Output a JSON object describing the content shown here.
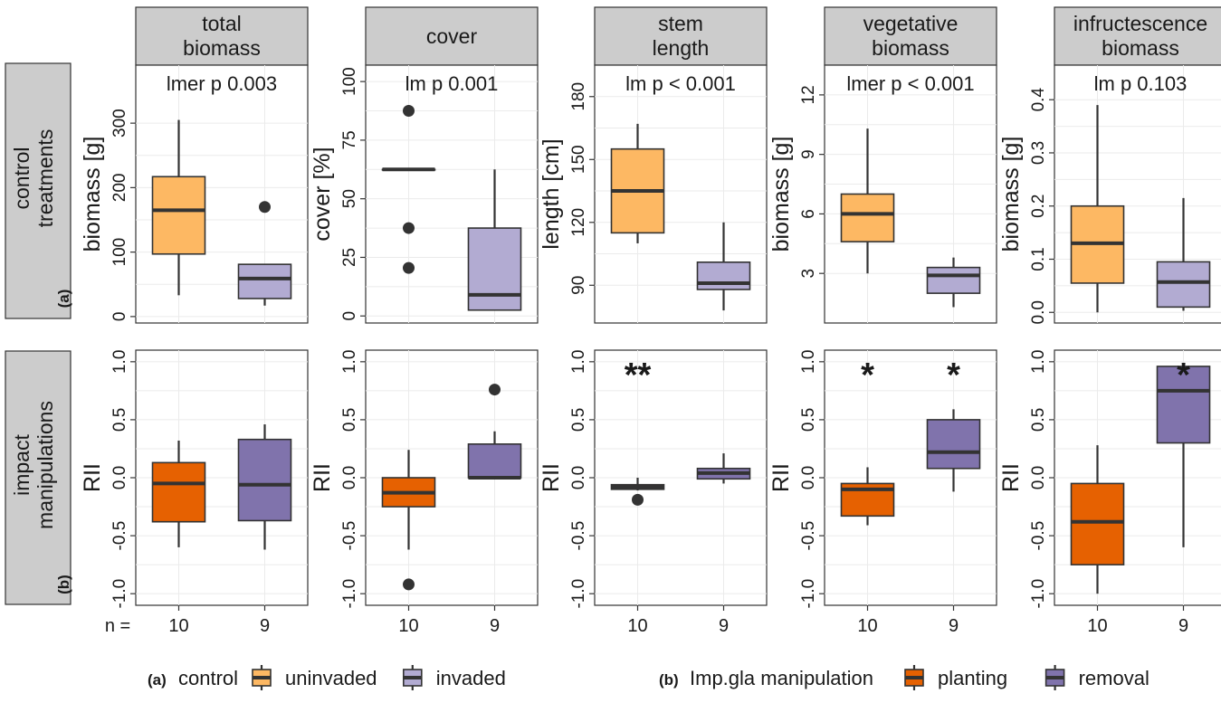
{
  "colors": {
    "uninvaded": "#fdb863",
    "invaded": "#b2abd2",
    "planting": "#e66101",
    "removal": "#8073ac",
    "strip_bg": "#cccccc",
    "ink": "#333333"
  },
  "columns": [
    "total\nbiomass",
    "cover",
    "stem\nlength",
    "vegetative\nbiomass",
    "infructescence\nbiomass"
  ],
  "row_strips": [
    {
      "tag": "(a)",
      "text": "control\ntreatments"
    },
    {
      "tag": "(b)",
      "text": "impact\nmanipulations"
    }
  ],
  "n_label": "n =",
  "n_values": [
    "10",
    "9"
  ],
  "legend": {
    "a": {
      "tag": "(a)",
      "title": "control",
      "items": [
        {
          "label": "uninvaded",
          "color": "#fdb863"
        },
        {
          "label": "invaded",
          "color": "#b2abd2"
        }
      ]
    },
    "b": {
      "tag": "(b)",
      "title": "Imp.gla manipulation",
      "items": [
        {
          "label": "planting",
          "color": "#e66101"
        },
        {
          "label": "removal",
          "color": "#8073ac"
        }
      ]
    }
  },
  "chart_data": [
    {
      "type": "box",
      "row": 0,
      "col": 0,
      "ylabel": "biomass [g]",
      "stat_label": "lmer p 0.003",
      "ylim": [
        -10,
        390
      ],
      "yticks": [
        0,
        100,
        200,
        300
      ],
      "boxes": [
        {
          "group": "uninvaded",
          "color": "#fdb863",
          "min": 33,
          "q1": 97,
          "median": 165,
          "q3": 217,
          "max": 305,
          "outliers": []
        },
        {
          "group": "invaded",
          "color": "#b2abd2",
          "min": 17,
          "q1": 28,
          "median": 59,
          "q3": 81,
          "max": 81,
          "outliers": [
            170
          ]
        }
      ]
    },
    {
      "type": "box",
      "row": 0,
      "col": 1,
      "ylabel": "cover [%]",
      "stat_label": "lm p 0.001",
      "ylim": [
        -3,
        107
      ],
      "yticks": [
        0,
        25,
        50,
        75,
        100
      ],
      "boxes": [
        {
          "group": "uninvaded",
          "color": "#fdb863",
          "min": 62.5,
          "q1": 62.5,
          "median": 62.5,
          "q3": 62.5,
          "max": 62.5,
          "outliers": [
            87.5,
            37.5,
            20.5
          ]
        },
        {
          "group": "invaded",
          "color": "#b2abd2",
          "min": 2.5,
          "q1": 2.5,
          "median": 9,
          "q3": 37.5,
          "max": 62.5,
          "outliers": []
        }
      ]
    },
    {
      "type": "box",
      "row": 0,
      "col": 2,
      "ylabel": "length [cm]",
      "stat_label": "lm p < 0.001",
      "ylim": [
        72,
        195
      ],
      "yticks": [
        90,
        120,
        150,
        180
      ],
      "boxes": [
        {
          "group": "uninvaded",
          "color": "#fdb863",
          "min": 110,
          "q1": 115,
          "median": 135,
          "q3": 155,
          "max": 167,
          "outliers": []
        },
        {
          "group": "invaded",
          "color": "#b2abd2",
          "min": 78,
          "q1": 88,
          "median": 91,
          "q3": 101,
          "max": 120,
          "outliers": []
        }
      ]
    },
    {
      "type": "box",
      "row": 0,
      "col": 3,
      "ylabel": "biomass [g]",
      "stat_label": "lmer p < 0.001",
      "ylim": [
        0.5,
        13.5
      ],
      "yticks": [
        3,
        6,
        9,
        12
      ],
      "boxes": [
        {
          "group": "uninvaded",
          "color": "#fdb863",
          "min": 3,
          "q1": 4.6,
          "median": 6,
          "q3": 7,
          "max": 10.3,
          "outliers": []
        },
        {
          "group": "invaded",
          "color": "#b2abd2",
          "min": 1.3,
          "q1": 2,
          "median": 2.9,
          "q3": 3.3,
          "max": 3.8,
          "outliers": []
        }
      ]
    },
    {
      "type": "box",
      "row": 0,
      "col": 4,
      "ylabel": "biomass [g]",
      "stat_label": "lm p 0.103",
      "ylim": [
        -0.02,
        0.465
      ],
      "yticks": [
        0.0,
        0.1,
        0.2,
        0.3,
        0.4
      ],
      "ytick_labels": [
        "0.0",
        "0.1",
        "0.2",
        "0.3",
        "0.4"
      ],
      "boxes": [
        {
          "group": "uninvaded",
          "color": "#fdb863",
          "min": 0.0,
          "q1": 0.055,
          "median": 0.13,
          "q3": 0.2,
          "max": 0.39,
          "outliers": []
        },
        {
          "group": "invaded",
          "color": "#b2abd2",
          "min": 0.003,
          "q1": 0.01,
          "median": 0.057,
          "q3": 0.095,
          "max": 0.215,
          "outliers": []
        }
      ]
    },
    {
      "type": "box",
      "row": 1,
      "col": 0,
      "ylabel": "RII",
      "stars": [
        "",
        ""
      ],
      "ylim": [
        -1.1,
        1.1
      ],
      "yticks": [
        -1.0,
        -0.5,
        0.0,
        0.5,
        1.0
      ],
      "ytick_labels": [
        "-1.0",
        "-0.5",
        "0.0",
        "0.5",
        "1.0"
      ],
      "boxes": [
        {
          "group": "planting",
          "color": "#e66101",
          "min": -0.6,
          "q1": -0.38,
          "median": -0.05,
          "q3": 0.13,
          "max": 0.32,
          "outliers": []
        },
        {
          "group": "removal",
          "color": "#8073ac",
          "min": -0.62,
          "q1": -0.37,
          "median": -0.06,
          "q3": 0.33,
          "max": 0.46,
          "outliers": []
        }
      ]
    },
    {
      "type": "box",
      "row": 1,
      "col": 1,
      "ylabel": "RII",
      "stars": [
        "",
        ""
      ],
      "ylim": [
        -1.1,
        1.1
      ],
      "yticks": [
        -1.0,
        -0.5,
        0.0,
        0.5,
        1.0
      ],
      "ytick_labels": [
        "-1.0",
        "-0.5",
        "0.0",
        "0.5",
        "1.0"
      ],
      "boxes": [
        {
          "group": "planting",
          "color": "#e66101",
          "min": -0.62,
          "q1": -0.25,
          "median": -0.13,
          "q3": 0.0,
          "max": 0.24,
          "outliers": [
            -0.92
          ]
        },
        {
          "group": "removal",
          "color": "#8073ac",
          "min": 0.0,
          "q1": 0.0,
          "median": 0.0,
          "q3": 0.29,
          "max": 0.4,
          "outliers": [
            0.76
          ]
        }
      ]
    },
    {
      "type": "box",
      "row": 1,
      "col": 2,
      "ylabel": "RII",
      "stars": [
        "**",
        ""
      ],
      "ylim": [
        -1.1,
        1.1
      ],
      "yticks": [
        -1.0,
        -0.5,
        0.0,
        0.5,
        1.0
      ],
      "ytick_labels": [
        "-1.0",
        "-0.5",
        "0.0",
        "0.5",
        "1.0"
      ],
      "boxes": [
        {
          "group": "planting",
          "color": "#e66101",
          "min": -0.11,
          "q1": -0.1,
          "median": -0.08,
          "q3": -0.06,
          "max": 0.0,
          "outliers": [
            -0.19
          ]
        },
        {
          "group": "removal",
          "color": "#8073ac",
          "min": -0.05,
          "q1": -0.01,
          "median": 0.04,
          "q3": 0.08,
          "max": 0.21,
          "outliers": []
        }
      ]
    },
    {
      "type": "box",
      "row": 1,
      "col": 3,
      "ylabel": "RII",
      "stars": [
        "*",
        "*"
      ],
      "ylim": [
        -1.1,
        1.1
      ],
      "yticks": [
        -1.0,
        -0.5,
        0.0,
        0.5,
        1.0
      ],
      "ytick_labels": [
        "-1.0",
        "-0.5",
        "0.0",
        "0.5",
        "1.0"
      ],
      "boxes": [
        {
          "group": "planting",
          "color": "#e66101",
          "min": -0.41,
          "q1": -0.33,
          "median": -0.1,
          "q3": -0.05,
          "max": 0.09,
          "outliers": []
        },
        {
          "group": "removal",
          "color": "#8073ac",
          "min": -0.12,
          "q1": 0.08,
          "median": 0.22,
          "q3": 0.5,
          "max": 0.59,
          "outliers": []
        }
      ]
    },
    {
      "type": "box",
      "row": 1,
      "col": 4,
      "ylabel": "RII",
      "stars": [
        "",
        "*"
      ],
      "ylim": [
        -1.1,
        1.1
      ],
      "yticks": [
        -1.0,
        -0.5,
        0.0,
        0.5,
        1.0
      ],
      "ytick_labels": [
        "-1.0",
        "-0.5",
        "0.0",
        "0.5",
        "1.0"
      ],
      "boxes": [
        {
          "group": "planting",
          "color": "#e66101",
          "min": -1.0,
          "q1": -0.75,
          "median": -0.38,
          "q3": -0.05,
          "max": 0.28,
          "outliers": []
        },
        {
          "group": "removal",
          "color": "#8073ac",
          "min": -0.6,
          "q1": 0.3,
          "median": 0.75,
          "q3": 0.96,
          "max": 0.96,
          "outliers": []
        }
      ]
    }
  ]
}
